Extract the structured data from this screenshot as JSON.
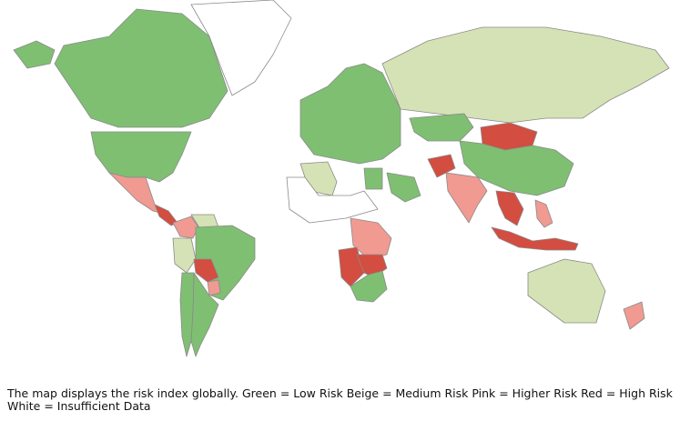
{
  "legend_colors": {
    "low": "#7fbf72",
    "low_light": "#a8d58f",
    "medium": "#d5e2b5",
    "higher": "#f09a92",
    "high": "#d34d40",
    "insufficient": "#ffffff",
    "border": "#8a8a8a"
  },
  "regions": [
    {
      "name": "Canada",
      "risk": "low"
    },
    {
      "name": "Greenland",
      "risk": "insufficient"
    },
    {
      "name": "United States",
      "risk": "low"
    },
    {
      "name": "Mexico",
      "risk": "higher"
    },
    {
      "name": "Central America",
      "risk": "high"
    },
    {
      "name": "Colombia",
      "risk": "higher"
    },
    {
      "name": "Venezuela",
      "risk": "medium"
    },
    {
      "name": "Peru",
      "risk": "medium"
    },
    {
      "name": "Brazil",
      "risk": "low"
    },
    {
      "name": "Bolivia",
      "risk": "high"
    },
    {
      "name": "Paraguay",
      "risk": "higher"
    },
    {
      "name": "Argentina",
      "risk": "low"
    },
    {
      "name": "Chile",
      "risk": "low"
    },
    {
      "name": "Europe",
      "risk": "low"
    },
    {
      "name": "Russia",
      "risk": "medium"
    },
    {
      "name": "Kazakhstan",
      "risk": "low"
    },
    {
      "name": "Mongolia",
      "risk": "high"
    },
    {
      "name": "China",
      "risk": "low"
    },
    {
      "name": "Afghanistan",
      "risk": "high"
    },
    {
      "name": "India",
      "risk": "higher"
    },
    {
      "name": "Southeast Asia",
      "risk": "high"
    },
    {
      "name": "Indonesia",
      "risk": "high"
    },
    {
      "name": "Philippines",
      "risk": "higher"
    },
    {
      "name": "Algeria",
      "risk": "medium"
    },
    {
      "name": "Egypt",
      "risk": "low"
    },
    {
      "name": "Saudi Arabia",
      "risk": "low"
    },
    {
      "name": "West Africa",
      "risk": "insufficient"
    },
    {
      "name": "Central Africa",
      "risk": "higher"
    },
    {
      "name": "Angola",
      "risk": "high"
    },
    {
      "name": "Zambia",
      "risk": "high"
    },
    {
      "name": "South Africa",
      "risk": "low"
    },
    {
      "name": "Australia",
      "risk": "medium"
    },
    {
      "name": "New Zealand",
      "risk": "higher"
    }
  ],
  "caption": {
    "line1": "The map displays the risk index globally. Green = Low Risk   Beige = Medium Risk   Pink = Higher Risk   Red = High Risk",
    "line2": "White = Insufficient Data"
  }
}
